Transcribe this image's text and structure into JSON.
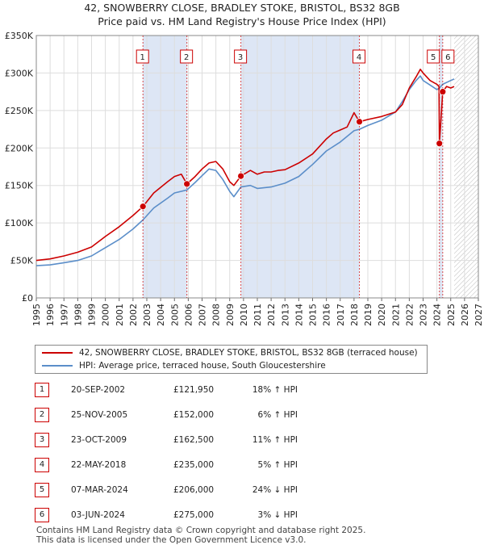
{
  "title_line1": "42, SNOWBERRY CLOSE, BRADLEY STOKE, BRISTOL, BS32 8GB",
  "title_line2": "Price paid vs. HM Land Registry's House Price Index (HPI)",
  "colors": {
    "price_line": "#cc0000",
    "hpi_line": "#5b8ec9",
    "band": "#dde6f5",
    "hatch": "#cfcfcf",
    "grid": "#dddddd",
    "marker_border": "#cc0000"
  },
  "chart_data": {
    "type": "line",
    "title": "Price paid vs. HM Land Registry's House Price Index (HPI)",
    "xlabel": "",
    "ylabel": "",
    "xlim": [
      1995,
      2027
    ],
    "ylim": [
      0,
      350000
    ],
    "y_ticks": [
      0,
      50000,
      100000,
      150000,
      200000,
      250000,
      300000,
      350000
    ],
    "y_tick_labels": [
      "£0",
      "£50K",
      "£100K",
      "£150K",
      "£200K",
      "£250K",
      "£300K",
      "£350K"
    ],
    "x_ticks": [
      1995,
      1996,
      1997,
      1998,
      1999,
      2000,
      2001,
      2002,
      2003,
      2004,
      2005,
      2006,
      2007,
      2008,
      2009,
      2010,
      2011,
      2012,
      2013,
      2014,
      2015,
      2016,
      2017,
      2018,
      2019,
      2020,
      2021,
      2022,
      2023,
      2024,
      2025,
      2026,
      2027
    ],
    "x_tick_labels": [
      "1995",
      "1996",
      "1997",
      "1998",
      "1999",
      "2000",
      "2001",
      "2002",
      "2003",
      "2004",
      "2005",
      "2006",
      "2007",
      "2008",
      "2009",
      "2010",
      "2011",
      "2012",
      "2013",
      "2014",
      "2015",
      "2016",
      "2017",
      "2018",
      "2019",
      "2020",
      "2021",
      "2022",
      "2023",
      "2024",
      "2025",
      "2026",
      "2027"
    ],
    "grid": true,
    "legend_position": "below",
    "highlight_periods": [
      [
        2002.72,
        2005.9
      ],
      [
        2009.81,
        2018.39
      ],
      [
        2024.18,
        2024.42
      ]
    ],
    "projection_from": 2025.25,
    "series": [
      {
        "name": "42, SNOWBERRY CLOSE, BRADLEY STOKE, BRISTOL, BS32 8GB (terraced house)",
        "color": "#cc0000",
        "x": [
          1995.0,
          1996.0,
          1997.0,
          1998.0,
          1999.0,
          2000.0,
          2001.0,
          2002.0,
          2002.72,
          2003.5,
          2004.5,
          2005.0,
          2005.5,
          2005.9,
          2006.5,
          2007.0,
          2007.5,
          2008.0,
          2008.5,
          2009.0,
          2009.3,
          2009.81,
          2010.5,
          2011.0,
          2011.5,
          2012.0,
          2012.5,
          2013.0,
          2014.0,
          2015.0,
          2016.0,
          2016.5,
          2017.0,
          2017.5,
          2018.0,
          2018.39,
          2019.0,
          2020.0,
          2021.0,
          2021.5,
          2022.0,
          2022.5,
          2022.8,
          2023.0,
          2023.5,
          2024.0,
          2024.15,
          2024.18,
          2024.3,
          2024.42,
          2024.7,
          2025.0,
          2025.25
        ],
        "values": [
          50000,
          52000,
          56000,
          61000,
          68000,
          82000,
          95000,
          110000,
          121950,
          140000,
          155000,
          162000,
          165000,
          152000,
          162000,
          172000,
          180000,
          182000,
          172000,
          155000,
          150000,
          162500,
          170000,
          165000,
          168000,
          168000,
          170000,
          171000,
          180000,
          192000,
          212000,
          220000,
          224000,
          228000,
          247000,
          235000,
          238000,
          242000,
          248000,
          258000,
          280000,
          295000,
          305000,
          300000,
          290000,
          285000,
          282000,
          206000,
          240000,
          275000,
          282000,
          280000,
          282000
        ]
      },
      {
        "name": "HPI: Average price, terraced house, South Gloucestershire",
        "color": "#5b8ec9",
        "x": [
          1995.0,
          1996.0,
          1997.0,
          1998.0,
          1999.0,
          2000.0,
          2001.0,
          2002.0,
          2002.72,
          2003.5,
          2004.5,
          2005.0,
          2005.9,
          2006.5,
          2007.0,
          2007.5,
          2008.0,
          2008.5,
          2009.0,
          2009.3,
          2009.81,
          2010.5,
          2011.0,
          2012.0,
          2013.0,
          2014.0,
          2015.0,
          2016.0,
          2017.0,
          2018.0,
          2018.39,
          2019.0,
          2020.0,
          2021.0,
          2021.5,
          2022.0,
          2022.5,
          2022.8,
          2023.0,
          2023.5,
          2024.0,
          2024.18,
          2024.42,
          2025.0,
          2025.25
        ],
        "values": [
          43000,
          44000,
          47000,
          50000,
          56000,
          67000,
          78000,
          92000,
          104000,
          120000,
          133000,
          140000,
          144000,
          154000,
          163000,
          172000,
          170000,
          158000,
          142000,
          135000,
          148000,
          150000,
          146000,
          148000,
          153000,
          162000,
          178000,
          196000,
          208000,
          223000,
          225000,
          230000,
          237000,
          248000,
          262000,
          278000,
          290000,
          296000,
          290000,
          284000,
          278000,
          280000,
          285000,
          290000,
          292000
        ]
      }
    ],
    "sales": [
      {
        "label": "1",
        "x": 2002.72,
        "value": 121950
      },
      {
        "label": "2",
        "x": 2005.9,
        "value": 152000
      },
      {
        "label": "3",
        "x": 2009.81,
        "value": 162500
      },
      {
        "label": "4",
        "x": 2018.39,
        "value": 235000
      },
      {
        "label": "5",
        "x": 2024.18,
        "value": 206000
      },
      {
        "label": "6",
        "x": 2024.42,
        "value": 275000
      }
    ]
  },
  "legend": [
    {
      "label": "42, SNOWBERRY CLOSE, BRADLEY STOKE, BRISTOL, BS32 8GB (terraced house)",
      "color": "#cc0000"
    },
    {
      "label": "HPI: Average price, terraced house, South Gloucestershire",
      "color": "#5b8ec9"
    }
  ],
  "transactions": [
    {
      "num": "1",
      "date": "20-SEP-2002",
      "price": "£121,950",
      "hpi": "18% ↑ HPI"
    },
    {
      "num": "2",
      "date": "25-NOV-2005",
      "price": "£152,000",
      "hpi": "6% ↑ HPI"
    },
    {
      "num": "3",
      "date": "23-OCT-2009",
      "price": "£162,500",
      "hpi": "11% ↑ HPI"
    },
    {
      "num": "4",
      "date": "22-MAY-2018",
      "price": "£235,000",
      "hpi": "5% ↑ HPI"
    },
    {
      "num": "5",
      "date": "07-MAR-2024",
      "price": "£206,000",
      "hpi": "24% ↓ HPI"
    },
    {
      "num": "6",
      "date": "03-JUN-2024",
      "price": "£275,000",
      "hpi": "3% ↓ HPI"
    }
  ],
  "footer_line1": "Contains HM Land Registry data © Crown copyright and database right 2025.",
  "footer_line2": "This data is licensed under the Open Government Licence v3.0."
}
